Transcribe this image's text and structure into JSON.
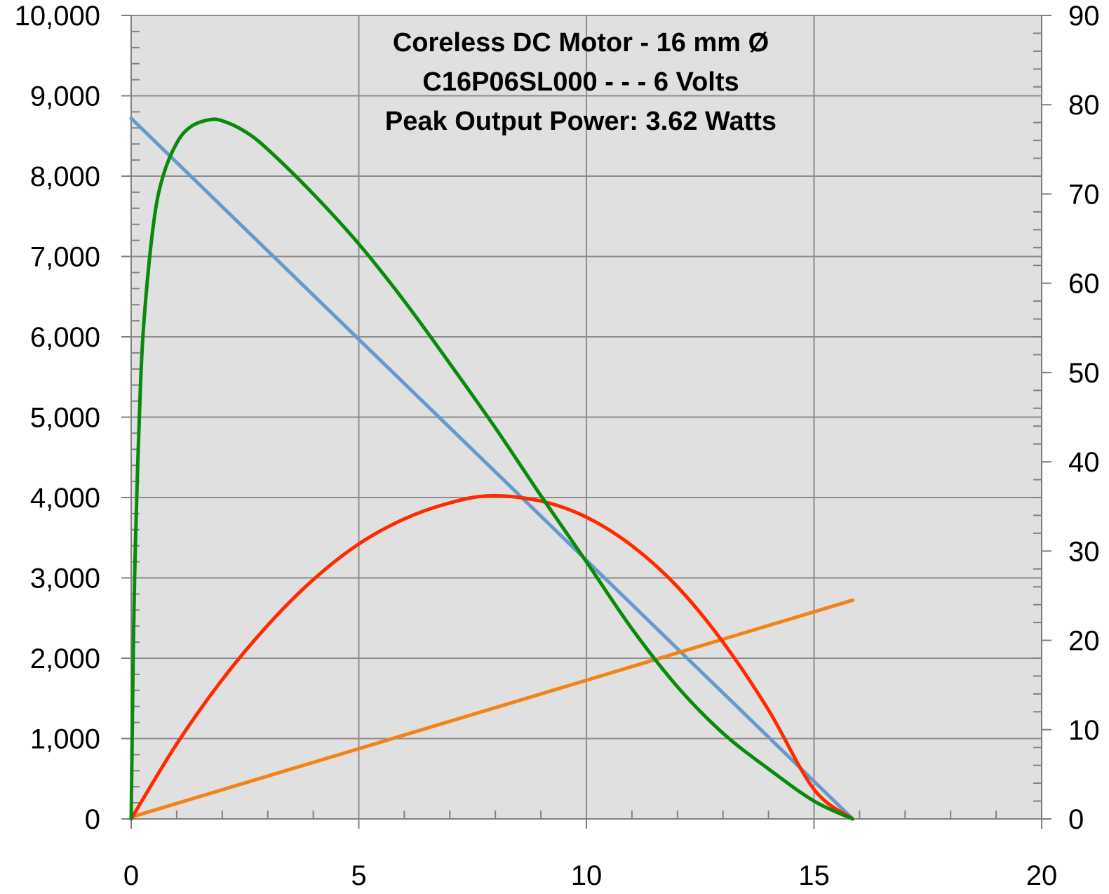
{
  "chart_data": {
    "type": "line",
    "title_lines": [
      "Coreless DC Motor - 16 mm Ø",
      "C16P06SL000 - - - 6 Volts",
      "Peak Output Power: 3.62 Watts"
    ],
    "xlabel": "",
    "ylabel": "",
    "y2label": "",
    "xlim": [
      0,
      20
    ],
    "ylim": [
      0,
      10000
    ],
    "y2lim": [
      0,
      90
    ],
    "x_ticks": [
      0,
      5,
      10,
      15,
      20
    ],
    "x_tick_labels": [
      "0",
      "5",
      "10",
      "15",
      "20"
    ],
    "y_ticks": [
      0,
      1000,
      2000,
      3000,
      4000,
      5000,
      6000,
      7000,
      8000,
      9000,
      10000
    ],
    "y_tick_labels": [
      "0",
      "1,000",
      "2,000",
      "3,000",
      "4,000",
      "5,000",
      "6,000",
      "7,000",
      "8,000",
      "9,000",
      "10,000"
    ],
    "y2_ticks": [
      0,
      10,
      20,
      30,
      40,
      50,
      60,
      70,
      80,
      90
    ],
    "y2_tick_labels": [
      "0",
      "10",
      "20",
      "30",
      "40",
      "50",
      "60",
      "70",
      "80",
      "90"
    ],
    "grid": true,
    "plot_background": "#e0e0e0",
    "series": [
      {
        "axis": "left",
        "color": "#6699cc",
        "x": [
          0,
          15.85
        ],
        "y": [
          8720,
          0
        ]
      },
      {
        "axis": "right",
        "color": "#f08418",
        "x": [
          0,
          15.85
        ],
        "y": [
          0.2,
          24.5
        ]
      },
      {
        "axis": "right",
        "color": "#ff2a00",
        "x": [
          0,
          1,
          2,
          3,
          4,
          5,
          6,
          7,
          7.9,
          9,
          10,
          11,
          12,
          13,
          14,
          15,
          15.85
        ],
        "y": [
          0,
          8.4,
          15.6,
          21.7,
          26.8,
          30.8,
          33.6,
          35.4,
          36.2,
          35.6,
          33.8,
          30.6,
          26.0,
          19.8,
          12.2,
          3.3,
          0
        ]
      },
      {
        "axis": "right",
        "color": "#0a8a0a",
        "x": [
          0,
          0.05,
          0.1,
          0.2,
          0.3,
          0.5,
          0.7,
          1.0,
          1.3,
          1.7,
          2.0,
          2.5,
          3,
          4,
          5,
          6,
          7,
          8,
          9,
          10,
          11,
          12,
          13,
          14,
          15,
          15.85
        ],
        "y": [
          0,
          20,
          32,
          48,
          57,
          67,
          72,
          75.7,
          77.5,
          78.3,
          78.2,
          77.0,
          75.0,
          70.0,
          64.4,
          58.0,
          51.0,
          43.8,
          36.2,
          28.8,
          21.3,
          14.8,
          9.6,
          5.6,
          2.0,
          0
        ]
      }
    ]
  }
}
